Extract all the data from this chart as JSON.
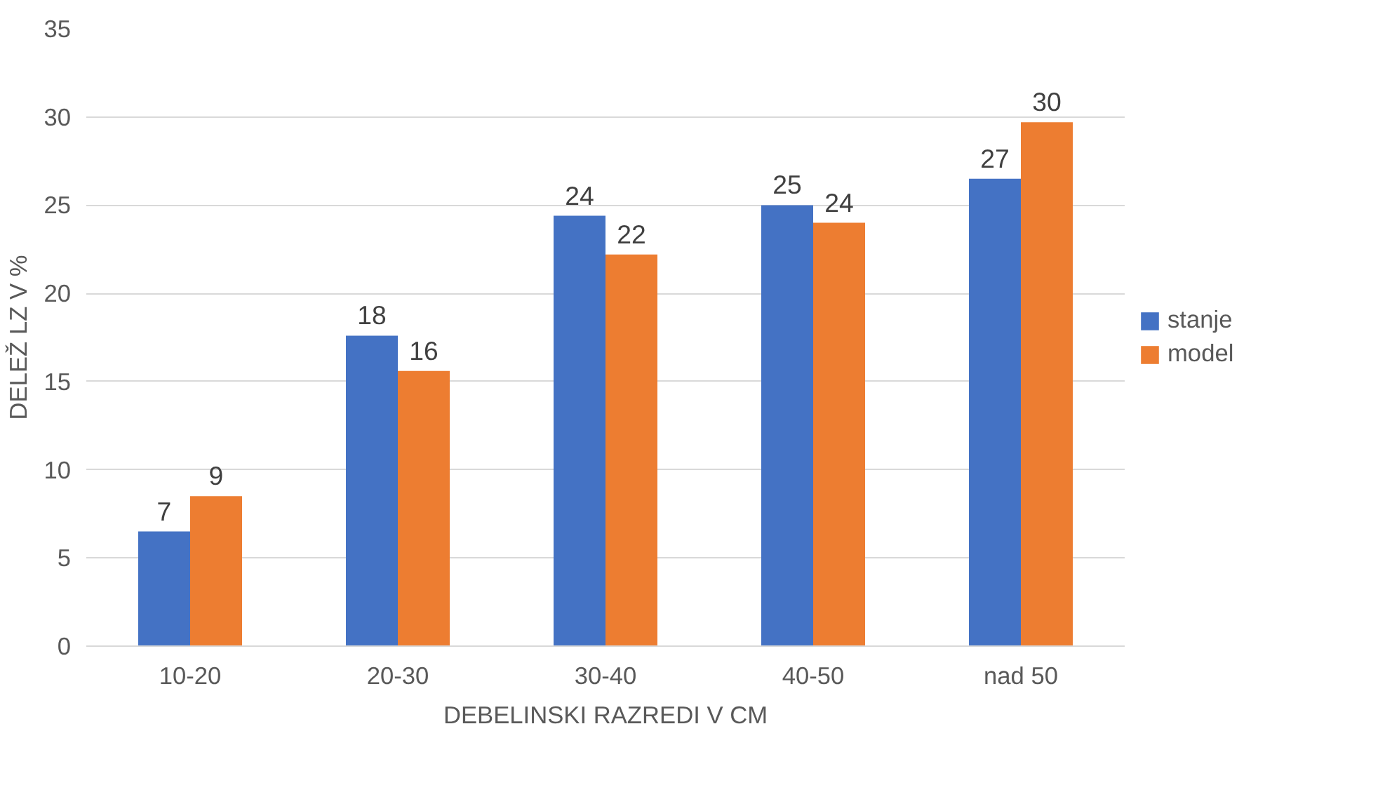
{
  "chart_data": {
    "type": "bar",
    "xlabel": "DEBELINSKI RAZREDI V CM",
    "ylabel": "DELEŽ LZ V %",
    "categories": [
      "10-20",
      "20-30",
      "30-40",
      "40-50",
      "nad 50"
    ],
    "series": [
      {
        "name": "stanje",
        "color": "#4472c4",
        "values": [
          6.5,
          17.6,
          24.4,
          25.0,
          26.5
        ],
        "value_labels": [
          "7",
          "18",
          "24",
          "25",
          "27"
        ]
      },
      {
        "name": "model",
        "color": "#ed7d31",
        "values": [
          8.5,
          15.6,
          22.2,
          24.0,
          29.7
        ],
        "value_labels": [
          "9",
          "16",
          "22",
          "24",
          "30"
        ]
      }
    ],
    "ylim": [
      0,
      35
    ],
    "yticks": [
      0,
      5,
      10,
      15,
      20,
      25,
      30,
      35
    ],
    "grid": "y",
    "legend": "right"
  }
}
